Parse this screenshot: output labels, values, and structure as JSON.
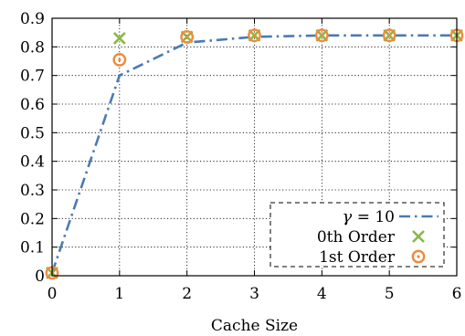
{
  "chart_data": {
    "type": "line",
    "title": "",
    "xlabel": "Cache Size",
    "ylabel": "",
    "xlim": [
      0,
      6
    ],
    "ylim": [
      0,
      0.9
    ],
    "x_ticks": [
      "0",
      "1",
      "2",
      "3",
      "4",
      "5",
      "6"
    ],
    "y_ticks": [
      "0",
      "0.1",
      "0.2",
      "0.3",
      "0.4",
      "0.5",
      "0.6",
      "0.7",
      "0.8",
      "0.9"
    ],
    "grid": true,
    "legend_position": "bottom-right",
    "series": [
      {
        "name": "γ = 10",
        "legend_var": "γ",
        "legend_rest": " = 10",
        "style": "dash-dot-line",
        "color": "#4a7ab5",
        "x": [
          0,
          1,
          2,
          3,
          4,
          5,
          6
        ],
        "y": [
          0.01,
          0.7,
          0.815,
          0.835,
          0.84,
          0.84,
          0.84
        ]
      },
      {
        "name": "0th Order",
        "style": "x-marker",
        "color": "#8ab845",
        "x": [
          0,
          1,
          2,
          3,
          4,
          5,
          6
        ],
        "y": [
          0.01,
          0.83,
          0.835,
          0.84,
          0.84,
          0.84,
          0.84
        ]
      },
      {
        "name": "1st Order",
        "style": "circle-dot-marker",
        "color": "#f08a3c",
        "x": [
          0,
          1,
          2,
          3,
          4,
          5,
          6
        ],
        "y": [
          0.01,
          0.755,
          0.835,
          0.84,
          0.84,
          0.84,
          0.84
        ]
      }
    ]
  }
}
